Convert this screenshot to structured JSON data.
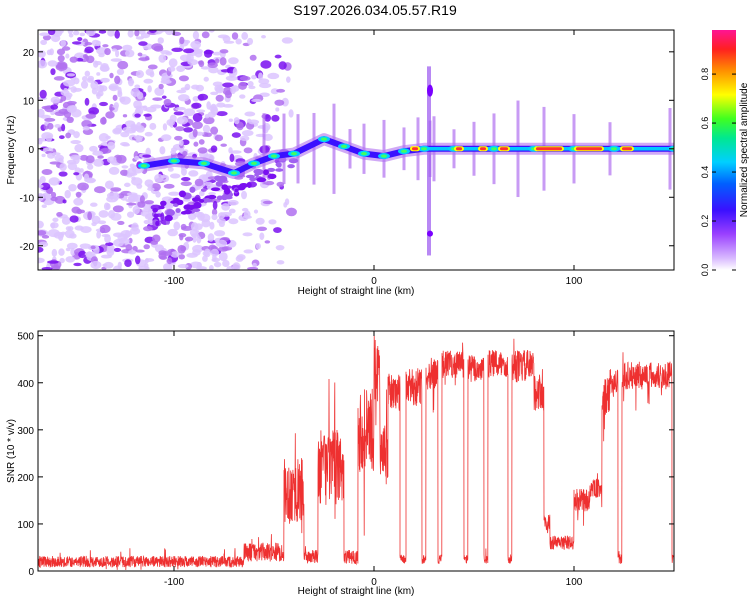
{
  "title": "S197.2026.034.05.57.R19",
  "chart_data": [
    {
      "type": "heatmap",
      "title": "S197.2026.034.05.57.R19",
      "xlabel": "Height of straight line (km)",
      "ylabel": "Frequency (Hz)",
      "xlim": [
        -168,
        150
      ],
      "ylim": [
        -25,
        24.5
      ],
      "xticks": [
        -100,
        0,
        100
      ],
      "xticklabels": [
        "-100",
        "0",
        "100"
      ],
      "yticks": [
        -20,
        -10,
        0,
        10,
        20
      ],
      "yticklabels": [
        "-20",
        "-10",
        "0",
        "10",
        "20"
      ],
      "colorbar": {
        "label": "Normalized spectral amplitude",
        "range": [
          0,
          0.98
        ],
        "ticks": [
          0,
          0.2,
          0.4,
          0.6,
          0.8
        ],
        "ticklabels": [
          "0.0",
          "0.2",
          "0.4",
          "0.6",
          "0.8"
        ],
        "colormap": [
          "#e8d8ff",
          "#b070f0",
          "#7a00ff",
          "#2030ff",
          "#00c8ff",
          "#00e880",
          "#80ff00",
          "#ffff00",
          "#ff9000",
          "#ff3030",
          "#ff1493"
        ]
      },
      "features": {
        "noise_region_x": [
          -168,
          -65
        ],
        "signal_track": [
          {
            "x": -115,
            "f": -3.5
          },
          {
            "x": -100,
            "f": -2.5
          },
          {
            "x": -85,
            "f": -3
          },
          {
            "x": -70,
            "f": -5
          },
          {
            "x": -60,
            "f": -3
          },
          {
            "x": -50,
            "f": -1.5
          },
          {
            "x": -40,
            "f": -1
          },
          {
            "x": -25,
            "f": 2
          },
          {
            "x": -15,
            "f": 0.5
          },
          {
            "x": -5,
            "f": -1
          },
          {
            "x": 5,
            "f": -1.5
          },
          {
            "x": 15,
            "f": -0.5
          },
          {
            "x": 25,
            "f": 0
          },
          {
            "x": 40,
            "f": 0
          },
          {
            "x": 60,
            "f": 0
          },
          {
            "x": 80,
            "f": 0
          },
          {
            "x": 100,
            "f": 0
          },
          {
            "x": 120,
            "f": 0
          },
          {
            "x": 150,
            "f": 0
          }
        ],
        "peak_segments": [
          [
            18,
            23
          ],
          [
            40,
            45
          ],
          [
            52,
            57
          ],
          [
            62,
            68
          ],
          [
            80,
            95
          ],
          [
            100,
            115
          ],
          [
            123,
            130
          ]
        ]
      }
    },
    {
      "type": "line",
      "xlabel": "Height of straight line (km)",
      "ylabel": "SNR (10 * v/v)",
      "xlim": [
        -168,
        150
      ],
      "ylim": [
        0,
        510
      ],
      "xticks": [
        -100,
        0,
        100
      ],
      "xticklabels": [
        "-100",
        "0",
        "100"
      ],
      "yticks": [
        0,
        100,
        200,
        300,
        400,
        500
      ],
      "yticklabels": [
        "0",
        "100",
        "200",
        "300",
        "400",
        "500"
      ],
      "color": "#ee3030",
      "series": [
        {
          "name": "SNR",
          "segments": [
            {
              "x0": -168,
              "x1": -65,
              "level": 20,
              "noise": 12
            },
            {
              "x0": -65,
              "x1": -45,
              "level": 40,
              "noise": 20
            },
            {
              "x0": -45,
              "x1": -35,
              "level": 170,
              "noise": 70
            },
            {
              "x0": -35,
              "x1": -28,
              "level": 30,
              "noise": 15
            },
            {
              "x0": -28,
              "x1": -15,
              "level": 220,
              "noise": 80
            },
            {
              "x0": -15,
              "x1": -8,
              "level": 30,
              "noise": 15
            },
            {
              "x0": -8,
              "x1": 0,
              "level": 300,
              "noise": 90
            },
            {
              "x0": 0,
              "x1": 3,
              "level": 430,
              "noise": 70
            },
            {
              "x0": 3,
              "x1": 7,
              "level": 250,
              "noise": 60
            },
            {
              "x0": 7,
              "x1": 13,
              "level": 380,
              "noise": 40
            },
            {
              "x0": 13,
              "x1": 16,
              "level": 25,
              "noise": 10
            },
            {
              "x0": 16,
              "x1": 24,
              "level": 390,
              "noise": 40
            },
            {
              "x0": 24,
              "x1": 26,
              "level": 25,
              "noise": 10
            },
            {
              "x0": 26,
              "x1": 32,
              "level": 420,
              "noise": 35
            },
            {
              "x0": 32,
              "x1": 34,
              "level": 25,
              "noise": 10
            },
            {
              "x0": 34,
              "x1": 45,
              "level": 440,
              "noise": 30
            },
            {
              "x0": 45,
              "x1": 47,
              "level": 25,
              "noise": 10
            },
            {
              "x0": 47,
              "x1": 55,
              "level": 430,
              "noise": 30
            },
            {
              "x0": 55,
              "x1": 57,
              "level": 25,
              "noise": 10
            },
            {
              "x0": 57,
              "x1": 67,
              "level": 440,
              "noise": 30
            },
            {
              "x0": 67,
              "x1": 69,
              "level": 25,
              "noise": 10
            },
            {
              "x0": 69,
              "x1": 80,
              "level": 435,
              "noise": 35
            },
            {
              "x0": 80,
              "x1": 85,
              "level": 380,
              "noise": 40
            },
            {
              "x0": 85,
              "x1": 88,
              "level": 100,
              "noise": 20
            },
            {
              "x0": 88,
              "x1": 100,
              "level": 60,
              "noise": 15
            },
            {
              "x0": 100,
              "x1": 108,
              "level": 150,
              "noise": 25
            },
            {
              "x0": 108,
              "x1": 114,
              "level": 175,
              "noise": 20
            },
            {
              "x0": 114,
              "x1": 118,
              "level": 370,
              "noise": 40
            },
            {
              "x0": 118,
              "x1": 122,
              "level": 400,
              "noise": 30
            },
            {
              "x0": 122,
              "x1": 124,
              "level": 25,
              "noise": 10
            },
            {
              "x0": 124,
              "x1": 149,
              "level": 415,
              "noise": 30
            },
            {
              "x0": 149,
              "x1": 150,
              "level": 25,
              "noise": 10
            }
          ]
        }
      ]
    }
  ]
}
